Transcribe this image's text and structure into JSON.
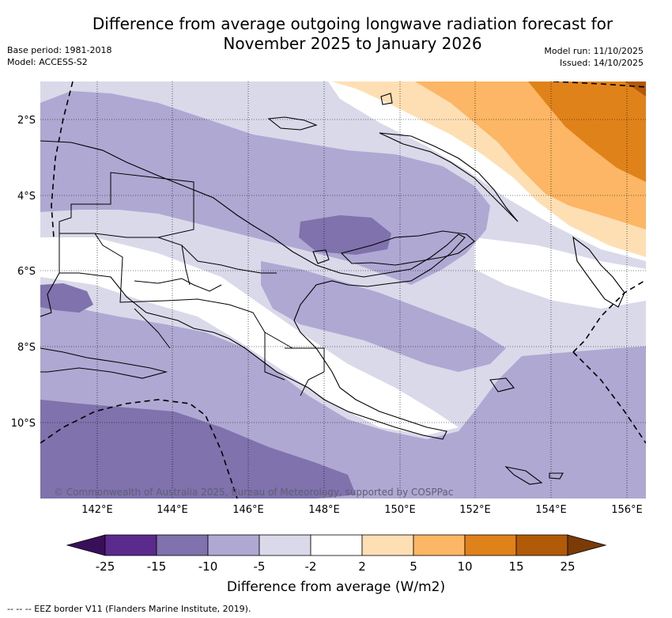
{
  "header": {
    "title_line1": "Difference from average outgoing longwave radiation forecast for",
    "title_line2": "November 2025 to January 2026",
    "base_period": "Base period: 1981-2018",
    "model": "Model: ACCESS-S2",
    "model_run": "Model run: 11/10/2025",
    "issued": "Issued: 14/10/2025"
  },
  "map": {
    "region": "Papua New Guinea",
    "lat_labels": [
      "2°S",
      "4°S",
      "6°S",
      "8°S",
      "10°S"
    ],
    "lon_labels": [
      "142°E",
      "144°E",
      "146°E",
      "148°E",
      "150°E",
      "152°E",
      "154°E",
      "156°E"
    ],
    "copyright": "© Commonwealth of Australia 2025, Bureau of Meteorology, supported by COSPPac"
  },
  "colorbar": {
    "title": "Difference from average (W/m2)",
    "tick_labels": [
      "-25",
      "-15",
      "-10",
      "-5",
      "-2",
      "2",
      "5",
      "10",
      "15",
      "25"
    ],
    "colors": {
      "below_min": "#3a0f5a",
      "bin1": "#5a2a8c",
      "bin2": "#7f72ad",
      "bin3": "#afa8d2",
      "bin4": "#d9d9ea",
      "bin5": "#ffffff",
      "bin6": "#fedfb4",
      "bin7": "#fcb665",
      "bin8": "#e0821a",
      "bin9": "#b15a08",
      "above_max": "#7b3b06"
    }
  },
  "legend": {
    "eez_text": "--  --  -- EEZ border V11 (Flanders Marine Institute, 2019)."
  }
}
